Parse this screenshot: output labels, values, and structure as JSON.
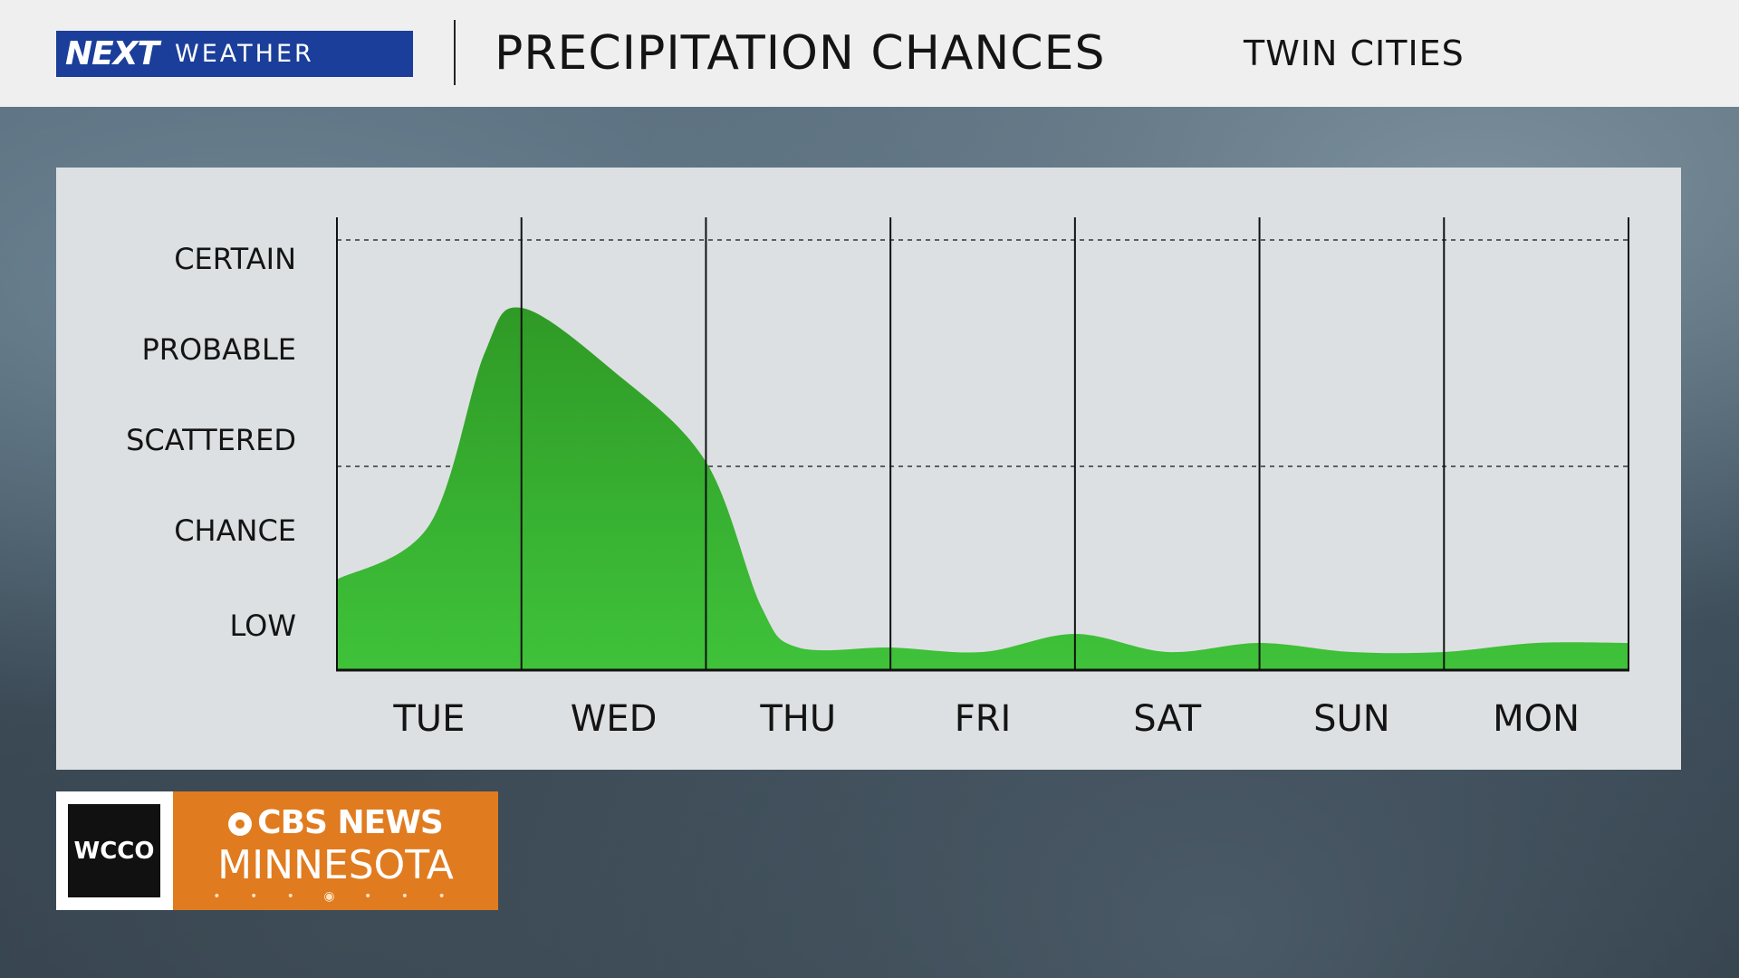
{
  "header": {
    "brand_next": "NEXT",
    "brand_weather": "WEATHER",
    "title": "PRECIPITATION CHANCES",
    "subtitle": "TWIN CITIES"
  },
  "logo": {
    "station": "WCCO",
    "network": "CBS NEWS",
    "region": "MINNESOTA",
    "dots": "• • • ◉ • • •"
  },
  "colors": {
    "brand_blue": "#1a3e9a",
    "area_green_top": "#2f9a26",
    "area_green_bottom": "#3fc23a",
    "logo_orange": "#e07b1f",
    "panel": "#dde0e2"
  },
  "chart_data": {
    "type": "area",
    "title": "PRECIPITATION CHANCES",
    "y_categories": [
      "LOW",
      "CHANCE",
      "SCATTERED",
      "PROBABLE",
      "CERTAIN"
    ],
    "ylim": [
      0,
      5
    ],
    "dashed_reference_levels": [
      2.25,
      4.75
    ],
    "x_categories": [
      "TUE",
      "WED",
      "THU",
      "FRI",
      "SAT",
      "SUN",
      "MON"
    ],
    "xlim": [
      0,
      7
    ],
    "series": [
      {
        "name": "Precipitation chance",
        "x": [
          0,
          0.5,
          0.8,
          1.0,
          1.5,
          2.0,
          2.3,
          2.5,
          3.0,
          3.5,
          4.0,
          4.5,
          5.0,
          5.5,
          6.0,
          6.5,
          7.0
        ],
        "values": [
          1.0,
          1.6,
          3.5,
          4.0,
          3.3,
          2.3,
          0.7,
          0.25,
          0.25,
          0.2,
          0.4,
          0.2,
          0.3,
          0.2,
          0.2,
          0.3,
          0.3
        ]
      }
    ]
  }
}
